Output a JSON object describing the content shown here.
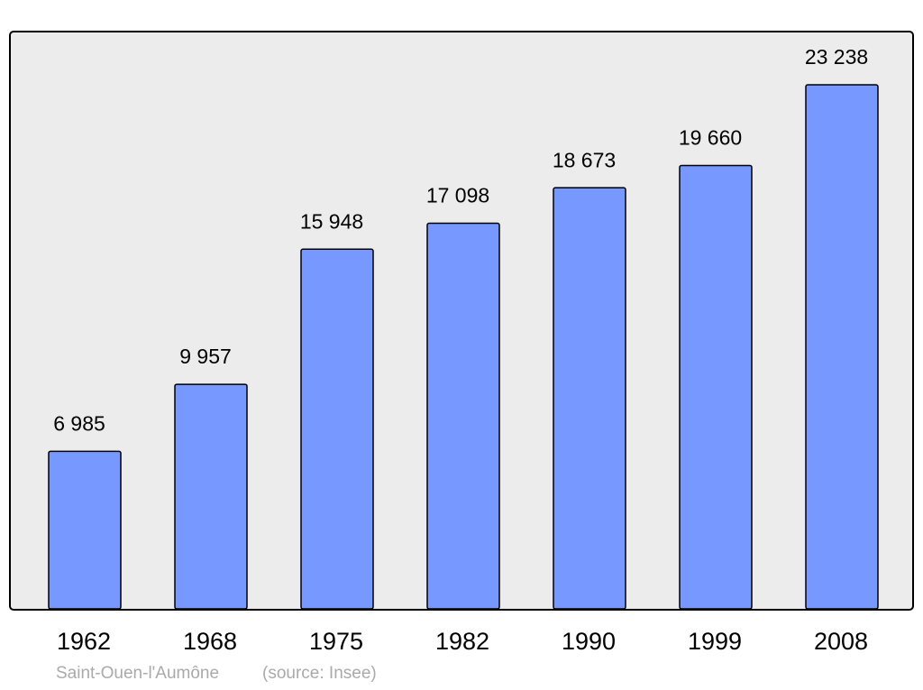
{
  "chart_data": {
    "type": "bar",
    "categories": [
      "1962",
      "1968",
      "1975",
      "1982",
      "1990",
      "1999",
      "2008"
    ],
    "values": [
      6985,
      9957,
      15948,
      17098,
      18673,
      19660,
      23238
    ],
    "value_labels": [
      "6 985",
      "9 957",
      "15 948",
      "17 098",
      "18 673",
      "19 660",
      "23 238"
    ],
    "color": "#7799ff",
    "ylim": [
      0,
      25600
    ],
    "caption": "Saint-Ouen-l'Aumône",
    "source": "(source: Insee)"
  }
}
